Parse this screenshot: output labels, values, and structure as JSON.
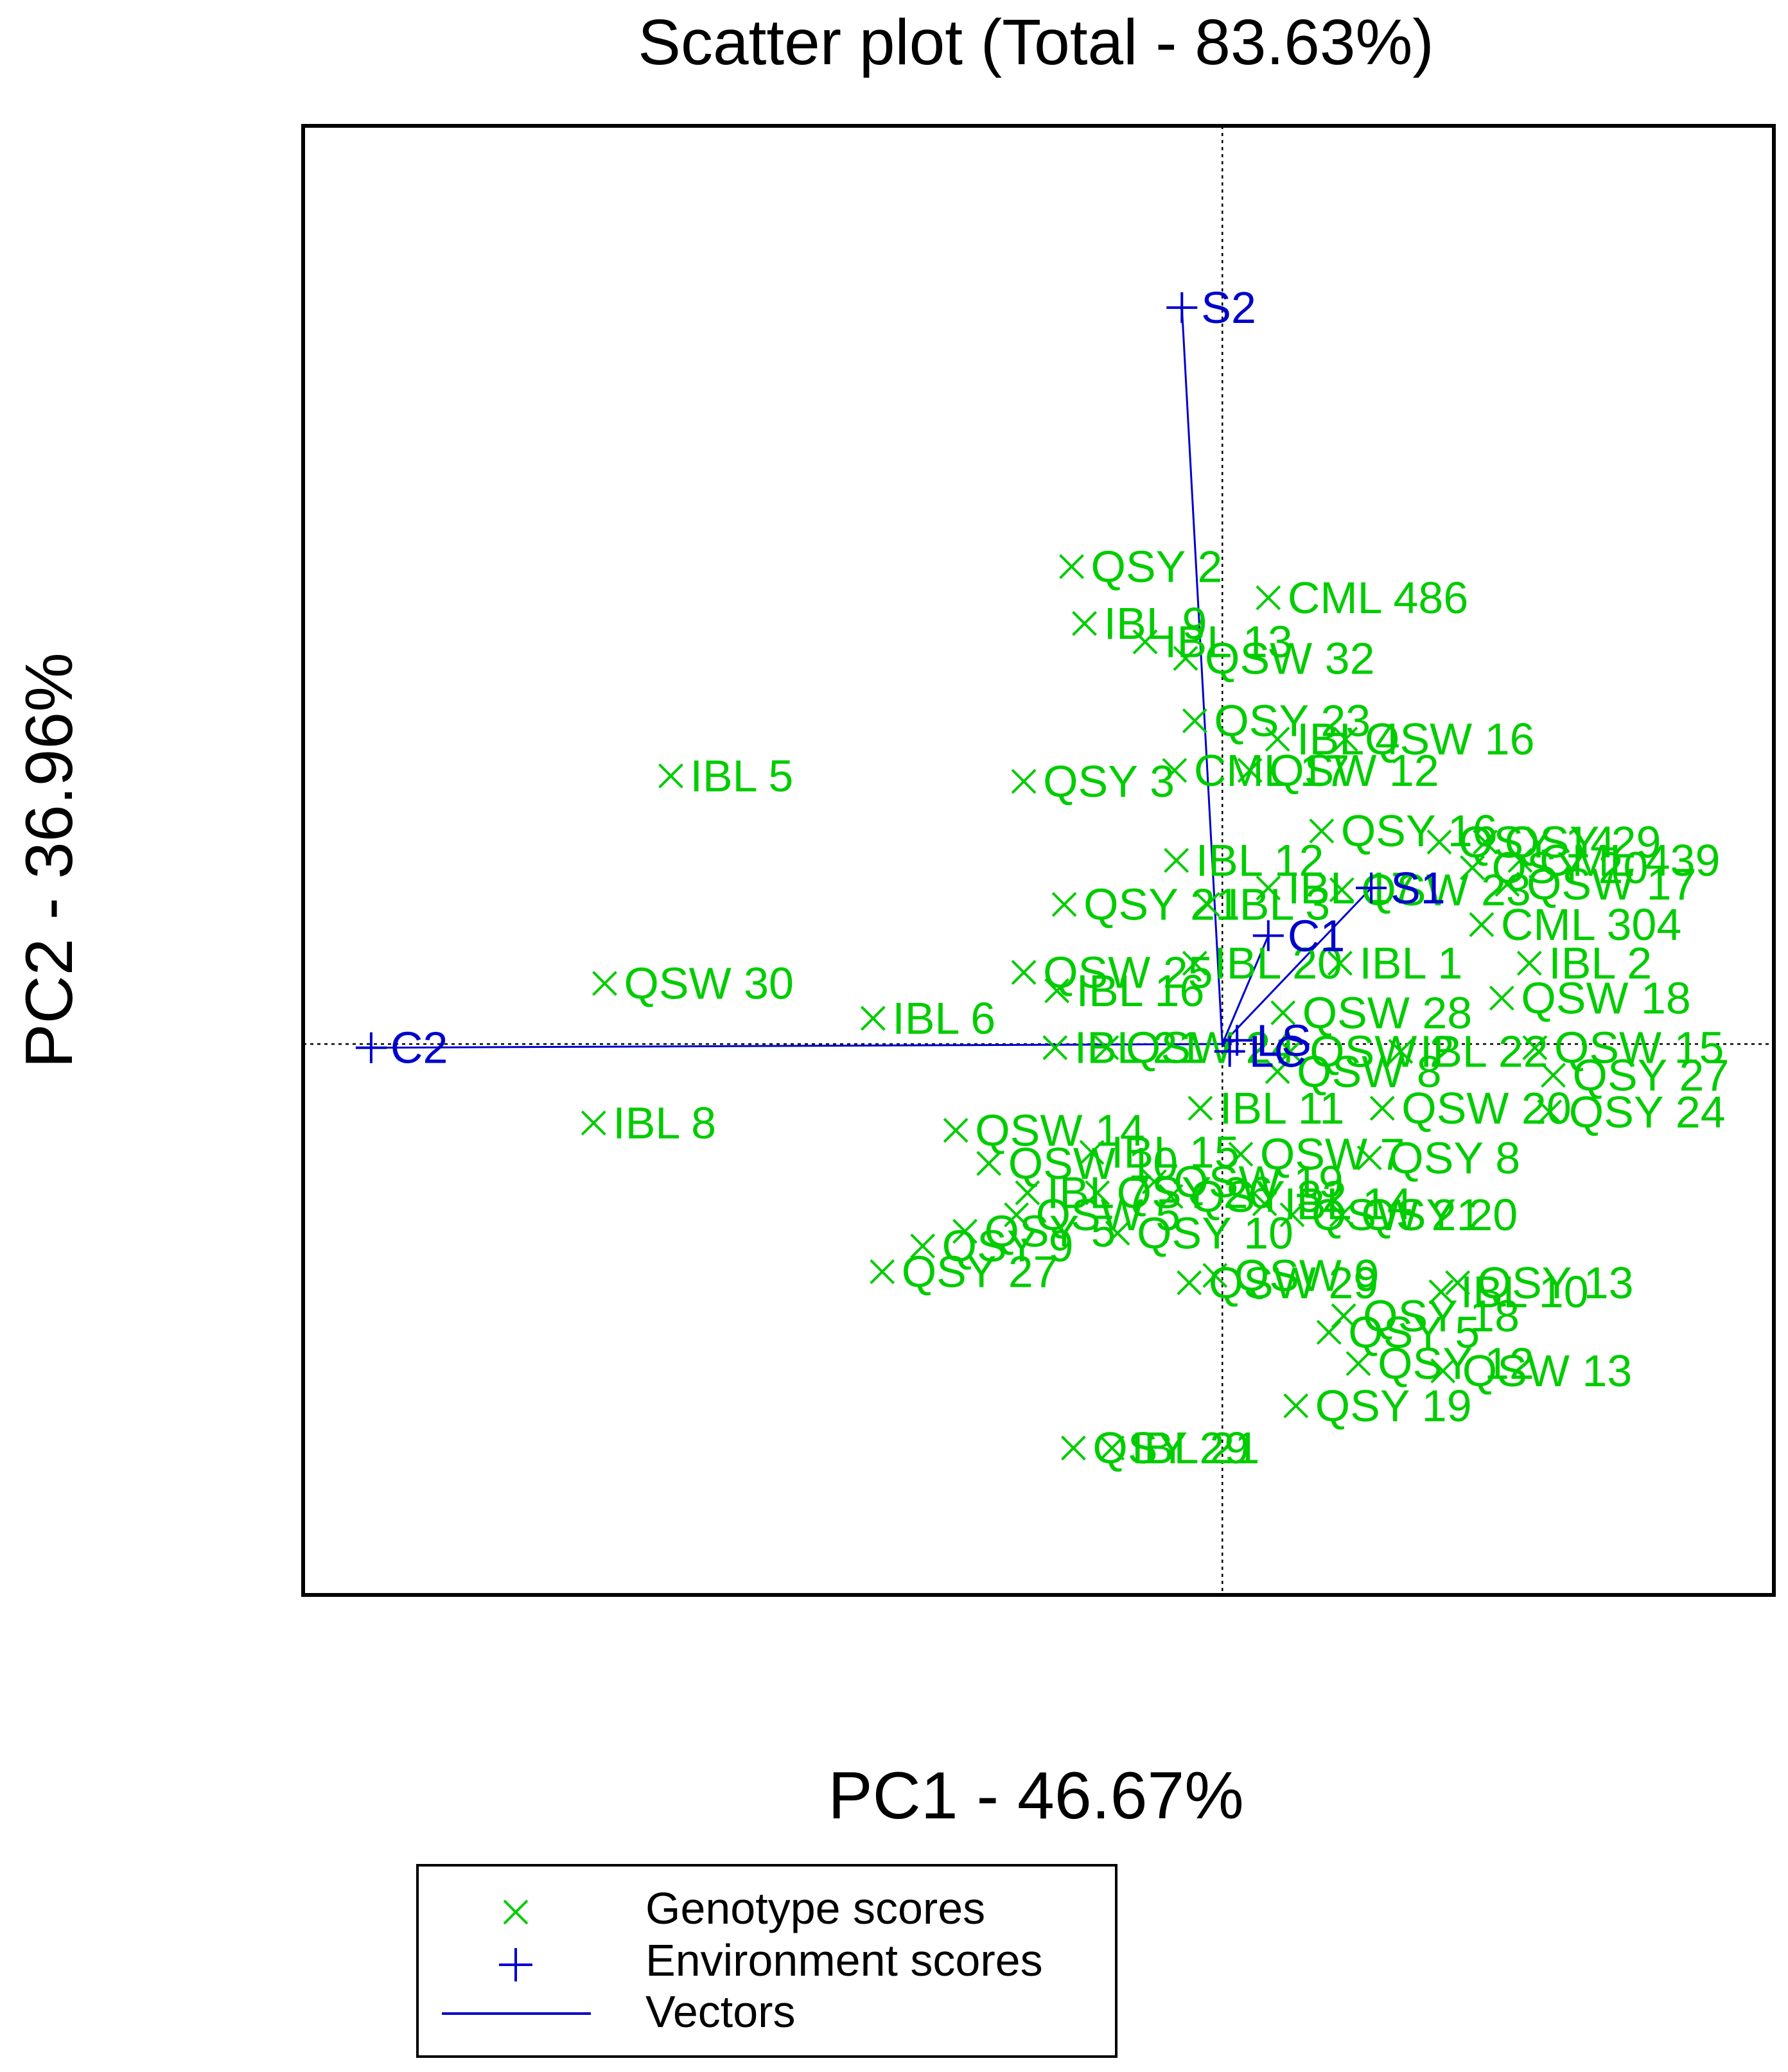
{
  "chart_data": {
    "type": "scatter",
    "title": "Scatter plot (Total - 83.63%)",
    "xlabel": "PC1 - 46.67%",
    "ylabel": "PC2 - 36.96%",
    "xlim": [
      -5.0,
      3.0
    ],
    "ylim": [
      -3.0,
      5.0
    ],
    "ticks_shown": false,
    "reference_lines": {
      "x": 0,
      "y": 0,
      "style": "dotted"
    },
    "colors": {
      "genotype": "#00cc00",
      "environment": "#0000cc",
      "vector": "#0000cc",
      "axis": "#000000"
    },
    "legend": {
      "placement": "bottom-center",
      "entries": [
        {
          "label": "Genotype scores",
          "symbol": "x-mark",
          "color": "#00cc00"
        },
        {
          "label": "Environment scores",
          "symbol": "plus-mark",
          "color": "#0000cc"
        },
        {
          "label": "Vectors",
          "symbol": "line",
          "color": "#0000cc"
        }
      ]
    },
    "environment_scores": [
      {
        "label": "S2",
        "x": -0.22,
        "y": 4.01
      },
      {
        "label": "S1",
        "x": 0.81,
        "y": 0.85
      },
      {
        "label": "C1",
        "x": 0.25,
        "y": 0.59
      },
      {
        "label": "C2",
        "x": -4.63,
        "y": -0.02
      },
      {
        "label": "LS",
        "x": 0.08,
        "y": 0.02
      },
      {
        "label": "LC",
        "x": 0.04,
        "y": -0.04
      }
    ],
    "genotype_scores": [
      {
        "label": "QSY 2",
        "x": -0.82,
        "y": 2.6
      },
      {
        "label": "IBL 9",
        "x": -0.75,
        "y": 2.29
      },
      {
        "label": "CML 486",
        "x": 0.25,
        "y": 2.43
      },
      {
        "label": "IBL 13",
        "x": -0.42,
        "y": 2.19
      },
      {
        "label": "QSW 32",
        "x": -0.2,
        "y": 2.1
      },
      {
        "label": "QSY 23",
        "x": -0.15,
        "y": 1.76
      },
      {
        "label": "IBL 4",
        "x": 0.3,
        "y": 1.66
      },
      {
        "label": "QSW 16",
        "x": 0.67,
        "y": 1.66
      },
      {
        "label": "CML 17",
        "x": -0.26,
        "y": 1.49
      },
      {
        "label": "QSW 12",
        "x": 0.15,
        "y": 1.49
      },
      {
        "label": "IBL 5",
        "x": -3.0,
        "y": 1.46
      },
      {
        "label": "QSY 3",
        "x": -1.08,
        "y": 1.43
      },
      {
        "label": "QSY 16",
        "x": 0.54,
        "y": 1.16
      },
      {
        "label": "QSY 14",
        "x": 1.18,
        "y": 1.1
      },
      {
        "label": "QSY 29",
        "x": 1.43,
        "y": 1.1
      },
      {
        "label": "IBL 12",
        "x": -0.25,
        "y": 1.0
      },
      {
        "label": "CML 439",
        "x": 1.62,
        "y": 1.0
      },
      {
        "label": "QSY 20",
        "x": 1.36,
        "y": 0.96
      },
      {
        "label": "QSW 17",
        "x": 1.55,
        "y": 0.87
      },
      {
        "label": "IBL 17",
        "x": 0.25,
        "y": 0.85
      },
      {
        "label": "QSW 23",
        "x": 0.65,
        "y": 0.84
      },
      {
        "label": "QSY 21",
        "x": -0.86,
        "y": 0.76
      },
      {
        "label": "IBL 3",
        "x": -0.08,
        "y": 0.76
      },
      {
        "label": "CML 304",
        "x": 1.41,
        "y": 0.65
      },
      {
        "label": "IBL 20",
        "x": -0.15,
        "y": 0.44
      },
      {
        "label": "QSW 25",
        "x": -1.08,
        "y": 0.39
      },
      {
        "label": "IBL 1",
        "x": 0.64,
        "y": 0.44
      },
      {
        "label": "IBL 2",
        "x": 1.67,
        "y": 0.44
      },
      {
        "label": "IBL 16",
        "x": -0.9,
        "y": 0.29
      },
      {
        "label": "QSW 18",
        "x": 1.52,
        "y": 0.25
      },
      {
        "label": "QSW 30",
        "x": -3.36,
        "y": 0.33
      },
      {
        "label": "IBL 6",
        "x": -1.9,
        "y": 0.14
      },
      {
        "label": "QSW 28",
        "x": 0.33,
        "y": 0.17
      },
      {
        "label": "IBL 21",
        "x": -0.91,
        "y": -0.02
      },
      {
        "label": "QSW 24",
        "x": -0.63,
        "y": -0.02
      },
      {
        "label": "QSW 2",
        "x": 0.37,
        "y": -0.04
      },
      {
        "label": "IBL 22",
        "x": 0.97,
        "y": -0.04
      },
      {
        "label": "QSW 15",
        "x": 1.7,
        "y": -0.02
      },
      {
        "label": "QSW 8",
        "x": 0.3,
        "y": -0.15
      },
      {
        "label": "QSY 27",
        "x": 1.8,
        "y": -0.17
      },
      {
        "label": "IBL 11",
        "x": -0.12,
        "y": -0.35
      },
      {
        "label": "QSW 20",
        "x": 0.87,
        "y": -0.35
      },
      {
        "label": "QSY 24",
        "x": 1.78,
        "y": -0.37
      },
      {
        "label": "IBL 8",
        "x": -3.42,
        "y": -0.43
      },
      {
        "label": "QSW 14",
        "x": -1.45,
        "y": -0.47
      },
      {
        "label": "IBL 15",
        "x": -0.71,
        "y": -0.59
      },
      {
        "label": "QSW 7",
        "x": 0.1,
        "y": -0.6
      },
      {
        "label": "QSY 8",
        "x": 0.8,
        "y": -0.62
      },
      {
        "label": "QSW 10",
        "x": -1.27,
        "y": -0.65
      },
      {
        "label": "QSW 19",
        "x": -0.37,
        "y": -0.75
      },
      {
        "label": "IBL 7",
        "x": -1.06,
        "y": -0.81
      },
      {
        "label": "QSY 26",
        "x": -0.68,
        "y": -0.81
      },
      {
        "label": "QSY 32",
        "x": -0.28,
        "y": -0.83
      },
      {
        "label": "IBL 14",
        "x": 0.23,
        "y": -0.87
      },
      {
        "label": "QSW 21",
        "x": 0.38,
        "y": -0.93
      },
      {
        "label": "QSY 20",
        "x": 0.65,
        "y": -0.93
      },
      {
        "label": "QSW 5",
        "x": -1.12,
        "y": -0.93
      },
      {
        "label": "QSY 10",
        "x": -0.57,
        "y": -1.03
      },
      {
        "label": "QSY 5",
        "x": -1.4,
        "y": -1.02
      },
      {
        "label": "QSY 9",
        "x": -1.63,
        "y": -1.1
      },
      {
        "label": "QSY 27",
        "x": -1.85,
        "y": -1.24
      },
      {
        "label": "QSW 9",
        "x": -0.04,
        "y": -1.26
      },
      {
        "label": "QSW 29",
        "x": -0.18,
        "y": -1.3
      },
      {
        "label": "QSY 13",
        "x": 1.28,
        "y": -1.3
      },
      {
        "label": "IBL 10",
        "x": 1.19,
        "y": -1.35
      },
      {
        "label": "QSY 18",
        "x": 0.66,
        "y": -1.48
      },
      {
        "label": "QSY 5",
        "x": 0.58,
        "y": -1.57
      },
      {
        "label": "QSY 12",
        "x": 0.74,
        "y": -1.74
      },
      {
        "label": "QSW 13",
        "x": 1.2,
        "y": -1.78
      },
      {
        "label": "QSY 19",
        "x": 0.4,
        "y": -1.97
      },
      {
        "label": "QSY 29",
        "x": -0.81,
        "y": -2.2
      },
      {
        "label": "IBL 21",
        "x": -0.6,
        "y": -2.2
      }
    ]
  }
}
